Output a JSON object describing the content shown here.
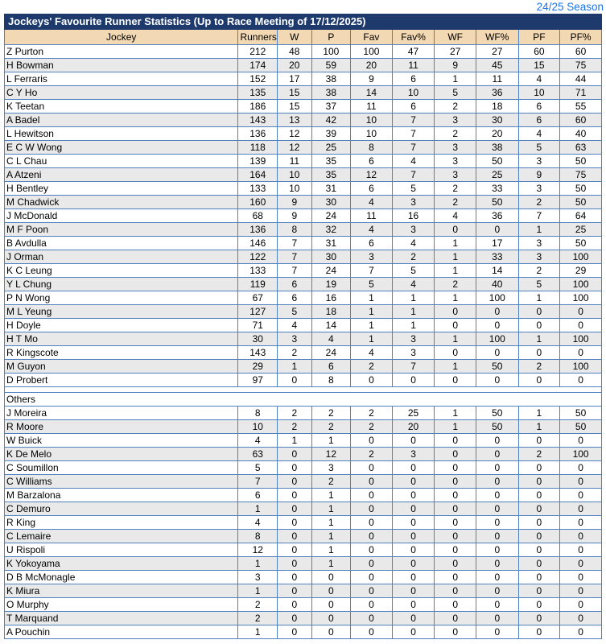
{
  "top_bar": {
    "season_link_label": "24/25 Season"
  },
  "colors": {
    "title_bar_bg": "#1e3a6d",
    "title_text": "#ffffff",
    "header_bg": "#f2d9b3",
    "cell_border": "#4e81bd",
    "alt_row_bg": "#e9e9e9",
    "link_blue": "#1a73e8"
  },
  "table": {
    "title": "Jockeys' Favourite Runner Statistics (Up to Race Meeting of 17/12/2025)",
    "columns": [
      "Jockey",
      "Runners",
      "W",
      "P",
      "Fav",
      "Fav%",
      "WF",
      "WF%",
      "PF",
      "PF%"
    ],
    "others_label": "Others",
    "main_rows": [
      [
        "Z Purton",
        212,
        48,
        100,
        100,
        47,
        27,
        27,
        60,
        60
      ],
      [
        "H Bowman",
        174,
        20,
        59,
        20,
        11,
        9,
        45,
        15,
        75
      ],
      [
        "L Ferraris",
        152,
        17,
        38,
        9,
        6,
        1,
        11,
        4,
        44
      ],
      [
        "C Y Ho",
        135,
        15,
        38,
        14,
        10,
        5,
        36,
        10,
        71
      ],
      [
        "K Teetan",
        186,
        15,
        37,
        11,
        6,
        2,
        18,
        6,
        55
      ],
      [
        "A Badel",
        143,
        13,
        42,
        10,
        7,
        3,
        30,
        6,
        60
      ],
      [
        "L Hewitson",
        136,
        12,
        39,
        10,
        7,
        2,
        20,
        4,
        40
      ],
      [
        "E C W Wong",
        118,
        12,
        25,
        8,
        7,
        3,
        38,
        5,
        63
      ],
      [
        "C L Chau",
        139,
        11,
        35,
        6,
        4,
        3,
        50,
        3,
        50
      ],
      [
        "A Atzeni",
        164,
        10,
        35,
        12,
        7,
        3,
        25,
        9,
        75
      ],
      [
        "H Bentley",
        133,
        10,
        31,
        6,
        5,
        2,
        33,
        3,
        50
      ],
      [
        "M Chadwick",
        160,
        9,
        30,
        4,
        3,
        2,
        50,
        2,
        50
      ],
      [
        "J McDonald",
        68,
        9,
        24,
        11,
        16,
        4,
        36,
        7,
        64
      ],
      [
        "M F Poon",
        136,
        8,
        32,
        4,
        3,
        0,
        0,
        1,
        25
      ],
      [
        "B Avdulla",
        146,
        7,
        31,
        6,
        4,
        1,
        17,
        3,
        50
      ],
      [
        "J Orman",
        122,
        7,
        30,
        3,
        2,
        1,
        33,
        3,
        100
      ],
      [
        "K C Leung",
        133,
        7,
        24,
        7,
        5,
        1,
        14,
        2,
        29
      ],
      [
        "Y L Chung",
        119,
        6,
        19,
        5,
        4,
        2,
        40,
        5,
        100
      ],
      [
        "P N Wong",
        67,
        6,
        16,
        1,
        1,
        1,
        100,
        1,
        100
      ],
      [
        "M L Yeung",
        127,
        5,
        18,
        1,
        1,
        0,
        0,
        0,
        0
      ],
      [
        "H Doyle",
        71,
        4,
        14,
        1,
        1,
        0,
        0,
        0,
        0
      ],
      [
        "H T Mo",
        30,
        3,
        4,
        1,
        3,
        1,
        100,
        1,
        100
      ],
      [
        "R Kingscote",
        143,
        2,
        24,
        4,
        3,
        0,
        0,
        0,
        0
      ],
      [
        "M Guyon",
        29,
        1,
        6,
        2,
        7,
        1,
        50,
        2,
        100
      ],
      [
        "D Probert",
        97,
        0,
        8,
        0,
        0,
        0,
        0,
        0,
        0
      ]
    ],
    "others_rows": [
      [
        "J Moreira",
        8,
        2,
        2,
        2,
        25,
        1,
        50,
        1,
        50
      ],
      [
        "R Moore",
        10,
        2,
        2,
        2,
        20,
        1,
        50,
        1,
        50
      ],
      [
        "W Buick",
        4,
        1,
        1,
        0,
        0,
        0,
        0,
        0,
        0
      ],
      [
        "K De Melo",
        63,
        0,
        12,
        2,
        3,
        0,
        0,
        2,
        100
      ],
      [
        "C Soumillon",
        5,
        0,
        3,
        0,
        0,
        0,
        0,
        0,
        0
      ],
      [
        "C Williams",
        7,
        0,
        2,
        0,
        0,
        0,
        0,
        0,
        0
      ],
      [
        "M Barzalona",
        6,
        0,
        1,
        0,
        0,
        0,
        0,
        0,
        0
      ],
      [
        "C Demuro",
        1,
        0,
        1,
        0,
        0,
        0,
        0,
        0,
        0
      ],
      [
        "R King",
        4,
        0,
        1,
        0,
        0,
        0,
        0,
        0,
        0
      ],
      [
        "C Lemaire",
        8,
        0,
        1,
        0,
        0,
        0,
        0,
        0,
        0
      ],
      [
        "U Rispoli",
        12,
        0,
        1,
        0,
        0,
        0,
        0,
        0,
        0
      ],
      [
        "K Yokoyama",
        1,
        0,
        1,
        0,
        0,
        0,
        0,
        0,
        0
      ],
      [
        "D B McMonagle",
        3,
        0,
        0,
        0,
        0,
        0,
        0,
        0,
        0
      ],
      [
        "K Miura",
        1,
        0,
        0,
        0,
        0,
        0,
        0,
        0,
        0
      ],
      [
        "O Murphy",
        2,
        0,
        0,
        0,
        0,
        0,
        0,
        0,
        0
      ],
      [
        "T Marquand",
        2,
        0,
        0,
        0,
        0,
        0,
        0,
        0,
        0
      ],
      [
        "A Pouchin",
        1,
        0,
        0,
        0,
        0,
        0,
        0,
        0,
        0
      ]
    ]
  }
}
